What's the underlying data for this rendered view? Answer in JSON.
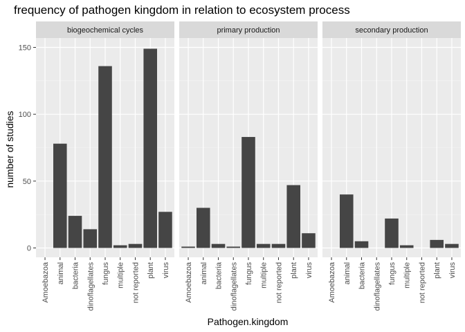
{
  "chart_data": {
    "type": "bar",
    "title": "frequency of pathogen kingdom in relation to ecosystem process",
    "xlabel": "Pathogen.kingdom",
    "ylabel": "number of studies",
    "ylim": [
      -7,
      157
    ],
    "yticks": [
      0,
      50,
      100,
      150
    ],
    "categories": [
      "Amoebazoa",
      "animal",
      "bacteria",
      "dinoflagellates",
      "fungus",
      "multiple",
      "not reported",
      "plant",
      "virus"
    ],
    "facets": [
      {
        "name": "biogeochemical cycles",
        "values": [
          0,
          78,
          24,
          14,
          136,
          2,
          3,
          149,
          27
        ]
      },
      {
        "name": "primary production",
        "values": [
          1,
          30,
          3,
          1,
          83,
          3,
          3,
          47,
          11
        ]
      },
      {
        "name": "secondary production",
        "values": [
          0,
          40,
          5,
          0,
          22,
          2,
          0,
          6,
          3
        ]
      }
    ],
    "grid": true,
    "bar_color": "#454545",
    "panel_color": "#ebebeb",
    "strip_color": "#d9d9d9"
  }
}
